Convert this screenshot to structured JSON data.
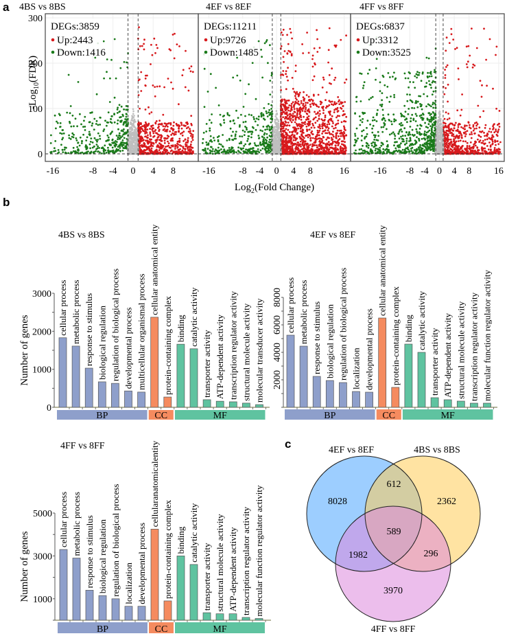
{
  "panels": {
    "a": "a",
    "b": "b",
    "c": "c"
  },
  "chart_data": [
    {
      "type": "scatter",
      "panel": "a",
      "title": "4BS vs 8BS",
      "xlabel": "Log2(Fold Change)",
      "ylabel": "-Log10(FDR)",
      "xticks": [
        -16,
        -8,
        -4,
        0,
        4,
        8
      ],
      "yticks": [
        0,
        100,
        200,
        300
      ],
      "ylim": [
        0,
        300
      ],
      "xlim": [
        -17.5,
        13
      ],
      "thresholds": {
        "log2fc": [
          -1,
          1
        ],
        "fdr_line": 0
      },
      "legend": {
        "degs_label": "DEGs:3859",
        "up_label": "Up:2443",
        "down_label": "Down:1416"
      },
      "degs": 3859,
      "up": 2443,
      "down": 1416,
      "colors": {
        "up": "#d7191c",
        "down": "#1a7a1a",
        "ns": "#bfbfbf"
      }
    },
    {
      "type": "scatter",
      "panel": "a",
      "title": "4EF vs 8EF",
      "xlabel": "Log2(Fold Change)",
      "ylabel": "-Log10(FDR)",
      "xticks": [
        -16,
        -8,
        -4,
        0,
        4,
        8,
        16
      ],
      "yticks": [
        0,
        100,
        200,
        300
      ],
      "ylim": [
        0,
        300
      ],
      "xlim": [
        -18.5,
        17.5
      ],
      "thresholds": {
        "log2fc": [
          -1,
          1
        ],
        "fdr_line": 0
      },
      "legend": {
        "degs_label": "DEGs:11211",
        "up_label": "Up:9726",
        "down_label": "Down:1485"
      },
      "degs": 11211,
      "up": 9726,
      "down": 1485,
      "colors": {
        "up": "#d7191c",
        "down": "#1a7a1a",
        "ns": "#bfbfbf"
      }
    },
    {
      "type": "scatter",
      "panel": "a",
      "title": "4FF vs 8FF",
      "xlabel": "Log2(Fold Change)",
      "ylabel": "-Log10(FDR)",
      "xticks": [
        -16,
        -8,
        -4,
        0,
        4,
        8,
        16
      ],
      "yticks": [
        0,
        100,
        200,
        300
      ],
      "ylim": [
        0,
        300
      ],
      "xlim": [
        -24,
        17.5
      ],
      "thresholds": {
        "log2fc": [
          -1,
          1
        ],
        "fdr_line": 0
      },
      "legend": {
        "degs_label": "DEGs:6837",
        "up_label": "Up:3312",
        "down_label": "Down:3525"
      },
      "degs": 6837,
      "up": 3312,
      "down": 3525,
      "colors": {
        "up": "#d7191c",
        "down": "#1a7a1a",
        "ns": "#bfbfbf"
      }
    },
    {
      "type": "bar",
      "panel": "b",
      "title": "4BS vs 8BS",
      "ylabel": "Number of genes",
      "yticks": [
        0,
        1000,
        2000,
        3000
      ],
      "ylim": [
        0,
        3000
      ],
      "groups": [
        {
          "name": "BP",
          "color": "#8e9fcb",
          "categories": [
            "cellular process",
            "metabolic process",
            "response to stimulus",
            "biological regulation",
            "regulation of biological process",
            "developmental process",
            "multicellular organismal process"
          ],
          "values": [
            1830,
            1610,
            1030,
            670,
            630,
            430,
            400
          ]
        },
        {
          "name": "CC",
          "color": "#f58b5f",
          "categories": [
            "cellular anatomical entity",
            "protein-containing complex"
          ],
          "values": [
            2370,
            270
          ]
        },
        {
          "name": "MF",
          "color": "#5fc3a0",
          "categories": [
            "binding",
            "catalytic activity",
            "transporter activity",
            "ATP-dependent activity",
            "transcription regulator activity",
            "structural molecule activity",
            "molecular transducer activity"
          ],
          "values": [
            1660,
            1540,
            200,
            160,
            145,
            110,
            70
          ]
        }
      ]
    },
    {
      "type": "bar",
      "panel": "b",
      "title": "4EF vs 8EF",
      "ylabel": "",
      "yticks": [
        2000,
        4000,
        6000,
        8000
      ],
      "ylim": [
        0,
        8000
      ],
      "groups": [
        {
          "name": "BP",
          "color": "#8e9fcb",
          "categories": [
            "cellular process",
            "metabolic process",
            "response to stimulus",
            "biological regulation",
            "regulation of biological process",
            "localization",
            "developmental process"
          ],
          "values": [
            5250,
            4450,
            2250,
            1950,
            1800,
            1150,
            1100
          ]
        },
        {
          "name": "CC",
          "color": "#f58b5f",
          "categories": [
            "cellular anatomical entity",
            "protein-containing complex"
          ],
          "values": [
            6500,
            1450
          ]
        },
        {
          "name": "MF",
          "color": "#5fc3a0",
          "categories": [
            "binding",
            "catalytic activity",
            "transporter activity",
            "ATP-dependent activity",
            "structural molecule activity",
            "transcription regulator activity",
            "molecular function regulator activity"
          ],
          "values": [
            4600,
            4000,
            700,
            550,
            450,
            300,
            300
          ]
        }
      ]
    },
    {
      "type": "bar",
      "panel": "b",
      "title": "4FF vs 8FF",
      "ylabel": "Number of genes",
      "yticks": [
        1000,
        3000,
        5000
      ],
      "ylim": [
        0,
        5000
      ],
      "groups": [
        {
          "name": "BP",
          "color": "#8e9fcb",
          "categories": [
            "cellular process",
            "metabolic process",
            "response to stimulus",
            "biological regulation",
            "regulation of biological process",
            "localization",
            "developmental process"
          ],
          "values": [
            3300,
            2900,
            1400,
            1150,
            1000,
            650,
            650
          ]
        },
        {
          "name": "CC",
          "color": "#f58b5f",
          "categories": [
            "cellularanatomicalentity",
            "protein-containing complex"
          ],
          "values": [
            4250,
            900
          ]
        },
        {
          "name": "MF",
          "color": "#5fc3a0",
          "categories": [
            "binding",
            "catalytic activity",
            "transporter activity",
            "structural molecule activity",
            "ATP-dependent activity",
            "transcription regulator activity",
            "molecular function regulator activity"
          ],
          "values": [
            3000,
            2600,
            350,
            300,
            300,
            130,
            80
          ]
        }
      ]
    },
    {
      "type": "venn",
      "panel": "c",
      "sets": [
        {
          "name": "4EF vs 8EF",
          "color": "#4da6ff"
        },
        {
          "name": "4BS vs 8BS",
          "color": "#ffcc55"
        },
        {
          "name": "4FF vs 8FF",
          "color": "#dd88dd"
        }
      ],
      "regions": {
        "4EF_only": 8028,
        "4BS_only": 2362,
        "4FF_only": 3970,
        "4EF_4BS": 612,
        "4EF_4FF": 1982,
        "4BS_4FF": 296,
        "all_three": 589
      }
    }
  ]
}
